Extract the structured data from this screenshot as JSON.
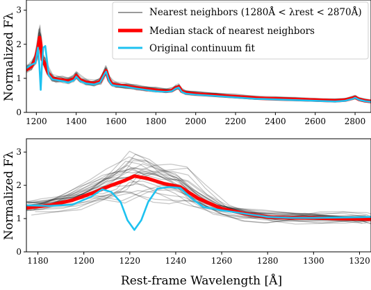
{
  "chart_data": [
    {
      "type": "line",
      "panel": "top",
      "xlim": [
        1150,
        2880
      ],
      "ylim": [
        0,
        3.3
      ],
      "xticks": [
        1200,
        1400,
        1600,
        1800,
        2000,
        2200,
        2400,
        2600,
        2800
      ],
      "yticks": [
        0,
        1,
        2,
        3
      ],
      "xlabel": "",
      "ylabel": "Normalized Fλ",
      "legend_position": "top-right",
      "legend": [
        {
          "label": "Nearest neighbors (1280Å < λrest < 2870Å)",
          "color": "#9a9a9a"
        },
        {
          "label": "Median stack of nearest neighbors",
          "color": "#ff0000"
        },
        {
          "label": "Original continuum fit",
          "color": "#1ec2f0"
        }
      ],
      "series": [
        {
          "name": "Median stack of nearest neighbors",
          "color": "#ff0000",
          "x": [
            1150,
            1175,
            1195,
            1210,
            1216,
            1222,
            1230,
            1240,
            1260,
            1280,
            1300,
            1330,
            1360,
            1390,
            1400,
            1420,
            1450,
            1490,
            1520,
            1540,
            1550,
            1565,
            1580,
            1600,
            1650,
            1700,
            1750,
            1800,
            1850,
            1880,
            1900,
            1915,
            1930,
            1950,
            2000,
            2100,
            2200,
            2300,
            2400,
            2500,
            2600,
            2700,
            2750,
            2790,
            2800,
            2820,
            2850,
            2880
          ],
          "y": [
            1.25,
            1.35,
            1.55,
            1.95,
            2.2,
            2.0,
            1.55,
            1.45,
            1.15,
            1.0,
            0.97,
            0.95,
            0.92,
            0.98,
            1.08,
            0.95,
            0.88,
            0.85,
            0.9,
            1.12,
            1.22,
            0.95,
            0.83,
            0.8,
            0.77,
            0.72,
            0.68,
            0.65,
            0.62,
            0.64,
            0.72,
            0.75,
            0.62,
            0.57,
            0.54,
            0.5,
            0.46,
            0.42,
            0.4,
            0.38,
            0.36,
            0.34,
            0.36,
            0.42,
            0.44,
            0.38,
            0.34,
            0.32
          ]
        },
        {
          "name": "Original continuum fit",
          "color": "#1ec2f0",
          "x": [
            1150,
            1175,
            1195,
            1208,
            1215,
            1222,
            1228,
            1235,
            1245,
            1262,
            1280,
            1300,
            1330,
            1360,
            1390,
            1400,
            1420,
            1450,
            1490,
            1520,
            1540,
            1550,
            1565,
            1580,
            1600,
            1650,
            1700,
            1750,
            1800,
            1850,
            1880,
            1900,
            1915,
            1930,
            1950,
            2000,
            2100,
            2200,
            2300,
            2400,
            2500,
            2600,
            2700,
            2750,
            2790,
            2800,
            2820,
            2850,
            2880
          ],
          "y": [
            1.3,
            1.4,
            1.45,
            1.9,
            1.4,
            0.66,
            1.4,
            1.9,
            1.95,
            1.1,
            0.97,
            0.95,
            0.92,
            0.88,
            0.95,
            1.05,
            0.92,
            0.85,
            0.82,
            0.88,
            1.1,
            1.2,
            0.92,
            0.8,
            0.78,
            0.75,
            0.7,
            0.66,
            0.62,
            0.6,
            0.62,
            0.7,
            0.73,
            0.6,
            0.55,
            0.52,
            0.48,
            0.44,
            0.4,
            0.38,
            0.36,
            0.34,
            0.32,
            0.34,
            0.4,
            0.43,
            0.37,
            0.33,
            0.31
          ]
        }
      ]
    },
    {
      "type": "line",
      "panel": "bottom",
      "xlim": [
        1175,
        1325
      ],
      "ylim": [
        0,
        3.4
      ],
      "xticks": [
        1180,
        1200,
        1220,
        1240,
        1260,
        1280,
        1300,
        1320
      ],
      "yticks": [
        0,
        1,
        2,
        3
      ],
      "xlabel": "Rest-frame Wavelength [Å]",
      "ylabel": "Normalized Fλ",
      "series": [
        {
          "name": "Median stack of nearest neighbors",
          "color": "#ff0000",
          "x": [
            1175,
            1185,
            1195,
            1205,
            1212,
            1218,
            1222,
            1228,
            1235,
            1242,
            1250,
            1260,
            1270,
            1280,
            1290,
            1300,
            1310,
            1320,
            1325
          ],
          "y": [
            1.32,
            1.4,
            1.55,
            1.8,
            2.0,
            2.15,
            2.28,
            2.2,
            2.05,
            1.95,
            1.6,
            1.3,
            1.15,
            1.05,
            1.02,
            1.02,
            1.0,
            0.99,
            0.98
          ]
        },
        {
          "name": "Original continuum fit",
          "color": "#1ec2f0",
          "x": [
            1175,
            1185,
            1195,
            1203,
            1208,
            1212,
            1216,
            1219,
            1222,
            1225,
            1228,
            1232,
            1237,
            1242,
            1247,
            1252,
            1260,
            1270,
            1280,
            1290,
            1300,
            1310,
            1320,
            1325
          ],
          "y": [
            1.4,
            1.38,
            1.42,
            1.65,
            1.88,
            1.8,
            1.5,
            0.95,
            0.66,
            0.95,
            1.5,
            1.9,
            1.95,
            1.92,
            1.6,
            1.35,
            1.25,
            1.15,
            1.05,
            1.02,
            1.02,
            1.03,
            1.04,
            1.05
          ]
        }
      ]
    }
  ]
}
